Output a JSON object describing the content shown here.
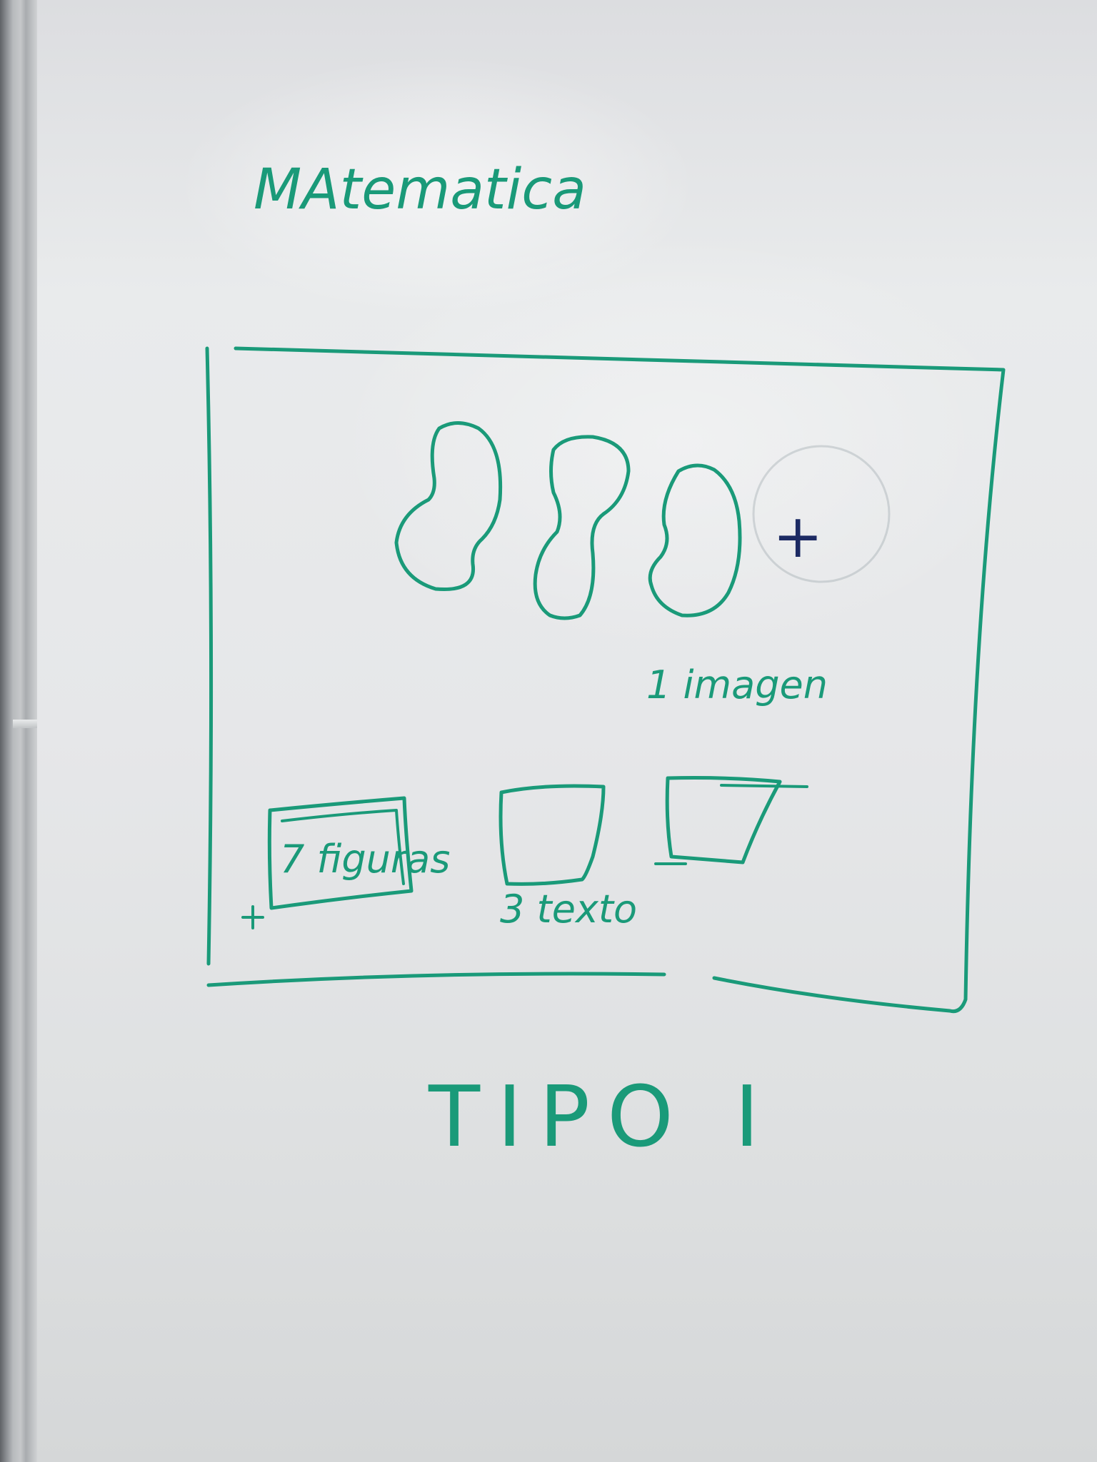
{
  "whiteboard": {
    "heading": "MAtematica",
    "box_label_images": "1 imagen",
    "box_label_figures": "7 figuras",
    "box_label_text": "3 texto",
    "plus_sign": "+",
    "footer": "TIPO I"
  },
  "colors": {
    "marker_green": "#1a9a79",
    "marker_blue": "#1c2a63",
    "board": "#e6e7e9"
  }
}
